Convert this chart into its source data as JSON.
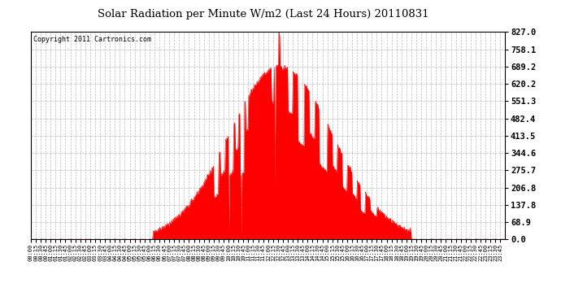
{
  "title": "Solar Radiation per Minute W/m2 (Last 24 Hours) 20110831",
  "copyright": "Copyright 2011 Cartronics.com",
  "bg_color": "#ffffff",
  "plot_bg_color": "#ffffff",
  "fill_color": "#ff0000",
  "line_color": "#ff0000",
  "grid_color": "#aaaaaa",
  "yticks": [
    0.0,
    68.9,
    137.8,
    206.8,
    275.7,
    344.6,
    413.5,
    482.4,
    551.3,
    620.2,
    689.2,
    758.1,
    827.0
  ],
  "ymax": 827.0,
  "ymin": 0.0,
  "dashed_zero_color": "#ff0000",
  "total_minutes": 1440,
  "sunrise_minute": 370,
  "sunset_minute": 1155,
  "peak_minute": 755,
  "peak_value": 827.0,
  "base_peak": 690.0
}
